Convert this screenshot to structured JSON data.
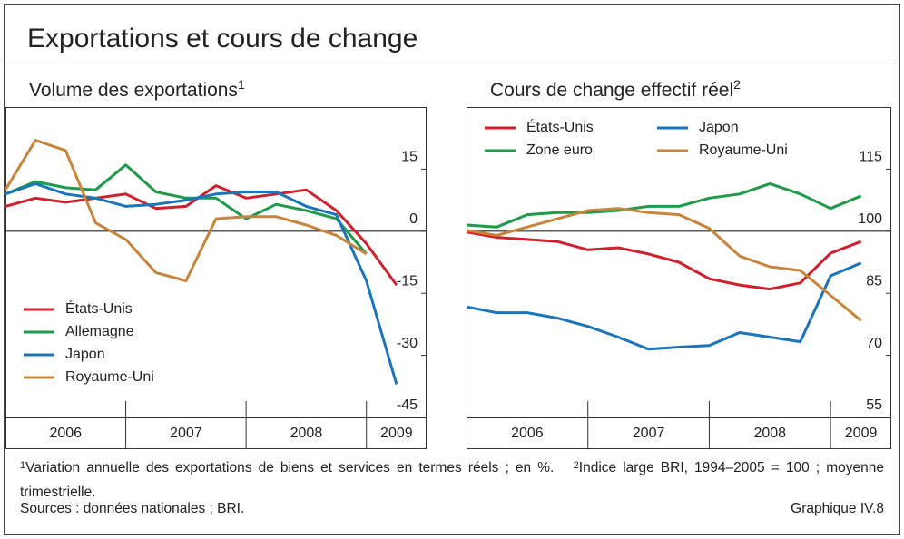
{
  "header": {
    "title": "Exportations et cours de change"
  },
  "chart_data": [
    {
      "type": "line",
      "title": "Volume des exportations",
      "title_note": "1",
      "x": [
        2006,
        2006.25,
        2006.5,
        2006.75,
        2007,
        2007.25,
        2007.5,
        2007.75,
        2008,
        2008.25,
        2008.5,
        2008.75,
        2009,
        2009.25
      ],
      "xlim": [
        2006,
        2009.5
      ],
      "xticks": [
        {
          "value": 2006.5,
          "label": "2006"
        },
        {
          "value": 2007.5,
          "label": "2007"
        },
        {
          "value": 2008.5,
          "label": "2008"
        },
        {
          "value": 2009.25,
          "label": "2009"
        }
      ],
      "ylim": [
        -45,
        30
      ],
      "yticks": [
        -45,
        -30,
        -15,
        0,
        15
      ],
      "hline": 0,
      "legend_position": "lower left",
      "legend_columns": 1,
      "series": [
        {
          "name": "États-Unis",
          "color": "#d0202e",
          "values": [
            6,
            8,
            7,
            8,
            9,
            5.5,
            6,
            11,
            8,
            9,
            10,
            5,
            -3,
            -13
          ]
        },
        {
          "name": "Allemagne",
          "color": "#1f9a4a",
          "values": [
            9,
            12,
            10.5,
            10,
            16,
            9.5,
            8,
            8,
            3,
            6.5,
            5,
            3,
            -5.5,
            null
          ]
        },
        {
          "name": "Japon",
          "color": "#1a75bb",
          "values": [
            9,
            11.5,
            9,
            8,
            6,
            6.5,
            7.5,
            9,
            9.5,
            9.5,
            6,
            4,
            -12,
            -37
          ]
        },
        {
          "name": "Royaume-Uni",
          "color": "#c8843a",
          "values": [
            10,
            22,
            19.5,
            2,
            -2,
            -10,
            -12,
            3,
            3.5,
            3.5,
            1.5,
            -1,
            -5.5,
            null
          ]
        }
      ]
    },
    {
      "type": "line",
      "title": "Cours de change effectif réel",
      "title_note": "2",
      "x": [
        2006,
        2006.25,
        2006.5,
        2006.75,
        2007,
        2007.25,
        2007.5,
        2007.75,
        2008,
        2008.25,
        2008.5,
        2008.75,
        2009,
        2009.25
      ],
      "xlim": [
        2006,
        2009.5
      ],
      "xticks": [
        {
          "value": 2006.5,
          "label": "2006"
        },
        {
          "value": 2007.5,
          "label": "2007"
        },
        {
          "value": 2008.5,
          "label": "2008"
        },
        {
          "value": 2009.25,
          "label": "2009"
        }
      ],
      "ylim": [
        55,
        130
      ],
      "yticks": [
        55,
        70,
        85,
        100,
        115
      ],
      "hline": 100,
      "legend_position": "upper left",
      "legend_columns": 2,
      "series": [
        {
          "name": "États-Unis",
          "color": "#d0202e",
          "values": [
            99.8,
            98.5,
            98,
            97.5,
            95.5,
            96,
            94.5,
            92.5,
            88.5,
            87,
            86,
            87.5,
            94.7,
            97.5
          ]
        },
        {
          "name": "Japon",
          "color": "#1a75bb",
          "values": [
            81.7,
            80.3,
            80.3,
            79,
            77,
            74.4,
            71.5,
            72,
            72.4,
            75.5,
            74.4,
            73.3,
            89.2,
            92.3
          ]
        },
        {
          "name": "Zone euro",
          "color": "#1f9a4a",
          "values": [
            101.5,
            101,
            104,
            104.5,
            104.5,
            105,
            106,
            106,
            108,
            109,
            111.5,
            109,
            105.5,
            108.5
          ]
        },
        {
          "name": "Royaume-Uni",
          "color": "#c8843a",
          "values": [
            100.2,
            99,
            101,
            103,
            105,
            105.5,
            104.5,
            104,
            100.7,
            94,
            91.4,
            90.5,
            84.5,
            78.4
          ]
        }
      ]
    }
  ],
  "footnotes": [
    {
      "mark": "1",
      "text": "Variation annuelle des exportations de biens et services en termes réels ; en %."
    },
    {
      "mark": "2",
      "text": "Indice large BRI, 1994–2005 = 100 ; moyenne trimestrielle."
    }
  ],
  "sources": "Sources : données nationales ; BRI.",
  "figure_id": "Graphique IV.8"
}
